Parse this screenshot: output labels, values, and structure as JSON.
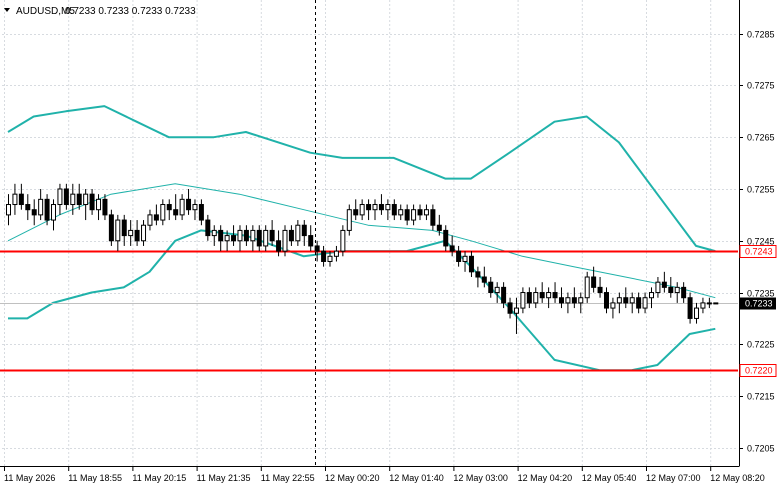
{
  "header": {
    "symbol": "AUDUSD,M5",
    "ohlc": "0.7233 0.7233 0.7233 0.7233"
  },
  "chart_data": {
    "type": "candlestick",
    "symbol": "AUDUSD",
    "timeframe": "M5",
    "y_ticks": [
      "0.7285",
      "0.7275",
      "0.7265",
      "0.7255",
      "0.7245",
      "0.7235",
      "0.7225",
      "0.7215",
      "0.7205"
    ],
    "ylim": [
      0.72015,
      0.72915
    ],
    "x_ticks": [
      "11 May 2026",
      "11 May 18:55",
      "11 May 20:15",
      "11 May 21:35",
      "11 May 22:55",
      "12 May 00:20",
      "12 May 01:40",
      "12 May 03:00",
      "12 May 04:20",
      "12 May 05:40",
      "12 May 07:00",
      "12 May 08:20"
    ],
    "bar_count": 111,
    "candles": [
      [
        0.725,
        0.7254,
        0.7248,
        0.7252
      ],
      [
        0.7252,
        0.7256,
        0.725,
        0.7254
      ],
      [
        0.7254,
        0.7256,
        0.7251,
        0.7252
      ],
      [
        0.7252,
        0.7254,
        0.7249,
        0.7251
      ],
      [
        0.7251,
        0.7253,
        0.7248,
        0.725
      ],
      [
        0.725,
        0.7255,
        0.7249,
        0.7253
      ],
      [
        0.7253,
        0.7254,
        0.7248,
        0.7249
      ],
      [
        0.7249,
        0.7253,
        0.7247,
        0.7252
      ],
      [
        0.7252,
        0.7256,
        0.725,
        0.7255
      ],
      [
        0.7255,
        0.7256,
        0.7251,
        0.7252
      ],
      [
        0.7252,
        0.7256,
        0.725,
        0.7254
      ],
      [
        0.7254,
        0.7256,
        0.7251,
        0.7252
      ],
      [
        0.7252,
        0.7255,
        0.7249,
        0.7254
      ],
      [
        0.7254,
        0.7255,
        0.725,
        0.7251
      ],
      [
        0.7251,
        0.7254,
        0.7249,
        0.7253
      ],
      [
        0.7253,
        0.7254,
        0.7249,
        0.725
      ],
      [
        0.725,
        0.7251,
        0.7244,
        0.7245
      ],
      [
        0.7245,
        0.725,
        0.7243,
        0.7249
      ],
      [
        0.7249,
        0.725,
        0.7244,
        0.7246
      ],
      [
        0.7246,
        0.7249,
        0.7244,
        0.7247
      ],
      [
        0.7247,
        0.7249,
        0.7244,
        0.7245
      ],
      [
        0.7245,
        0.7249,
        0.7244,
        0.7248
      ],
      [
        0.7248,
        0.7251,
        0.7247,
        0.725
      ],
      [
        0.725,
        0.7252,
        0.7248,
        0.7249
      ],
      [
        0.7249,
        0.7253,
        0.7248,
        0.7252
      ],
      [
        0.7252,
        0.7253,
        0.7249,
        0.7251
      ],
      [
        0.7251,
        0.7254,
        0.7249,
        0.725
      ],
      [
        0.725,
        0.7254,
        0.7249,
        0.7253
      ],
      [
        0.7253,
        0.7255,
        0.725,
        0.7251
      ],
      [
        0.7251,
        0.7253,
        0.7249,
        0.7252
      ],
      [
        0.7252,
        0.7253,
        0.7248,
        0.7249
      ],
      [
        0.7249,
        0.725,
        0.7245,
        0.7246
      ],
      [
        0.7246,
        0.7248,
        0.7244,
        0.7247
      ],
      [
        0.7247,
        0.7248,
        0.7243,
        0.7245
      ],
      [
        0.7245,
        0.7247,
        0.7243,
        0.7246
      ],
      [
        0.7246,
        0.7248,
        0.7244,
        0.7245
      ],
      [
        0.7245,
        0.7248,
        0.7243,
        0.7247
      ],
      [
        0.7247,
        0.7248,
        0.7244,
        0.7245
      ],
      [
        0.7245,
        0.7248,
        0.7243,
        0.7247
      ],
      [
        0.7247,
        0.7248,
        0.7243,
        0.7244
      ],
      [
        0.7244,
        0.7248,
        0.7243,
        0.7247
      ],
      [
        0.7247,
        0.7249,
        0.7244,
        0.7245
      ],
      [
        0.7245,
        0.7247,
        0.7242,
        0.7243
      ],
      [
        0.7243,
        0.7248,
        0.7242,
        0.7247
      ],
      [
        0.7247,
        0.7248,
        0.7244,
        0.7245
      ],
      [
        0.7245,
        0.7249,
        0.7244,
        0.7248
      ],
      [
        0.7248,
        0.7249,
        0.7244,
        0.7246
      ],
      [
        0.7246,
        0.7248,
        0.7243,
        0.7244
      ],
      [
        0.7244,
        0.7245,
        0.7241,
        0.7243
      ],
      [
        0.7243,
        0.7244,
        0.724,
        0.7241
      ],
      [
        0.7241,
        0.7243,
        0.724,
        0.7242
      ],
      [
        0.7242,
        0.7244,
        0.7241,
        0.7243
      ],
      [
        0.7243,
        0.7248,
        0.7242,
        0.7247
      ],
      [
        0.7247,
        0.7252,
        0.7246,
        0.7251
      ],
      [
        0.7251,
        0.7253,
        0.7249,
        0.725
      ],
      [
        0.725,
        0.7253,
        0.7249,
        0.7252
      ],
      [
        0.7252,
        0.7253,
        0.7249,
        0.7251
      ],
      [
        0.7251,
        0.7253,
        0.7249,
        0.7252
      ],
      [
        0.7252,
        0.7254,
        0.725,
        0.7251
      ],
      [
        0.7251,
        0.7253,
        0.7249,
        0.7252
      ],
      [
        0.7252,
        0.7253,
        0.7249,
        0.725
      ],
      [
        0.725,
        0.7252,
        0.7249,
        0.7251
      ],
      [
        0.7251,
        0.7252,
        0.7248,
        0.7249
      ],
      [
        0.7249,
        0.7252,
        0.7248,
        0.7251
      ],
      [
        0.7251,
        0.7252,
        0.7249,
        0.725
      ],
      [
        0.725,
        0.7252,
        0.7249,
        0.7251
      ],
      [
        0.7251,
        0.7252,
        0.7247,
        0.7248
      ],
      [
        0.7248,
        0.725,
        0.7246,
        0.7247
      ],
      [
        0.7247,
        0.7248,
        0.7243,
        0.7244
      ],
      [
        0.7244,
        0.7246,
        0.7242,
        0.7243
      ],
      [
        0.7243,
        0.7244,
        0.724,
        0.7241
      ],
      [
        0.7241,
        0.7243,
        0.7239,
        0.7242
      ],
      [
        0.7242,
        0.7243,
        0.7238,
        0.7239
      ],
      [
        0.7239,
        0.724,
        0.7236,
        0.7238
      ],
      [
        0.7238,
        0.724,
        0.7236,
        0.7237
      ],
      [
        0.7237,
        0.7238,
        0.7234,
        0.7235
      ],
      [
        0.7235,
        0.7237,
        0.7233,
        0.7236
      ],
      [
        0.7236,
        0.7237,
        0.7232,
        0.7233
      ],
      [
        0.7233,
        0.7234,
        0.723,
        0.7231
      ],
      [
        0.7231,
        0.7234,
        0.7227,
        0.7232
      ],
      [
        0.7232,
        0.7236,
        0.7231,
        0.7235
      ],
      [
        0.7235,
        0.7236,
        0.7232,
        0.7233
      ],
      [
        0.7233,
        0.7236,
        0.7232,
        0.7235
      ],
      [
        0.7235,
        0.7237,
        0.7233,
        0.7234
      ],
      [
        0.7234,
        0.7236,
        0.7232,
        0.7235
      ],
      [
        0.7235,
        0.7237,
        0.7233,
        0.7234
      ],
      [
        0.7234,
        0.7236,
        0.7232,
        0.7233
      ],
      [
        0.7233,
        0.7235,
        0.7231,
        0.7234
      ],
      [
        0.7234,
        0.7236,
        0.7232,
        0.7233
      ],
      [
        0.7233,
        0.7235,
        0.7231,
        0.7234
      ],
      [
        0.7234,
        0.7239,
        0.7233,
        0.7238
      ],
      [
        0.7238,
        0.724,
        0.7235,
        0.7236
      ],
      [
        0.7236,
        0.7238,
        0.7234,
        0.7235
      ],
      [
        0.7235,
        0.7236,
        0.7231,
        0.7232
      ],
      [
        0.7232,
        0.7234,
        0.723,
        0.7233
      ],
      [
        0.7233,
        0.7235,
        0.7231,
        0.7234
      ],
      [
        0.7234,
        0.7236,
        0.7232,
        0.7233
      ],
      [
        0.7233,
        0.7235,
        0.7231,
        0.7234
      ],
      [
        0.7234,
        0.7235,
        0.7231,
        0.7232
      ],
      [
        0.7232,
        0.7235,
        0.7231,
        0.7234
      ],
      [
        0.7234,
        0.7236,
        0.7232,
        0.7235
      ],
      [
        0.7235,
        0.7238,
        0.7234,
        0.7237
      ],
      [
        0.7237,
        0.7239,
        0.7235,
        0.7236
      ],
      [
        0.7236,
        0.7238,
        0.7234,
        0.7235
      ],
      [
        0.7235,
        0.7237,
        0.7233,
        0.7236
      ],
      [
        0.7236,
        0.7237,
        0.7233,
        0.7234
      ],
      [
        0.7234,
        0.7235,
        0.7229,
        0.723
      ],
      [
        0.723,
        0.7233,
        0.7229,
        0.7232
      ],
      [
        0.7232,
        0.7234,
        0.7231,
        0.7233
      ],
      [
        0.7233,
        0.7234,
        0.7232,
        0.7233
      ],
      [
        0.7233,
        0.7233,
        0.7233,
        0.7233
      ]
    ],
    "bollinger_upper": [
      [
        0,
        0.7266
      ],
      [
        4,
        0.7269
      ],
      [
        9,
        0.727
      ],
      [
        15,
        0.7271
      ],
      [
        20,
        0.7268
      ],
      [
        25,
        0.7265
      ],
      [
        32,
        0.7265
      ],
      [
        37,
        0.7266
      ],
      [
        47,
        0.7262
      ],
      [
        52,
        0.7261
      ],
      [
        60,
        0.7261
      ],
      [
        68,
        0.7257
      ],
      [
        72,
        0.7257
      ],
      [
        78,
        0.7262
      ],
      [
        85,
        0.7268
      ],
      [
        90,
        0.7269
      ],
      [
        95,
        0.7264
      ],
      [
        101,
        0.7254
      ],
      [
        107,
        0.7244
      ],
      [
        110,
        0.7243
      ]
    ],
    "bollinger_middle": [
      [
        0,
        0.7245
      ],
      [
        8,
        0.725
      ],
      [
        16,
        0.7254
      ],
      [
        26,
        0.7256
      ],
      [
        36,
        0.7254
      ],
      [
        46,
        0.7251
      ],
      [
        56,
        0.7248
      ],
      [
        66,
        0.7247
      ],
      [
        72,
        0.7245
      ],
      [
        80,
        0.7242
      ],
      [
        88,
        0.724
      ],
      [
        96,
        0.7238
      ],
      [
        104,
        0.7236
      ],
      [
        110,
        0.7234
      ]
    ],
    "bollinger_lower": [
      [
        0,
        0.723
      ],
      [
        3,
        0.723
      ],
      [
        7,
        0.7233
      ],
      [
        13,
        0.7235
      ],
      [
        18,
        0.7236
      ],
      [
        22,
        0.7239
      ],
      [
        26,
        0.7245
      ],
      [
        30,
        0.7247
      ],
      [
        37,
        0.7246
      ],
      [
        46,
        0.7242
      ],
      [
        52,
        0.7243
      ],
      [
        62,
        0.7243
      ],
      [
        68,
        0.7245
      ],
      [
        72,
        0.724
      ],
      [
        78,
        0.7232
      ],
      [
        85,
        0.7222
      ],
      [
        92,
        0.722
      ],
      [
        97,
        0.722
      ],
      [
        101,
        0.7221
      ],
      [
        106,
        0.7227
      ],
      [
        110,
        0.7228
      ]
    ],
    "horizontal_lines": [
      {
        "price": 0.7243,
        "label": "0.7243",
        "color": "#ff0000"
      },
      {
        "price": 0.722,
        "label": "0.7220",
        "color": "#ff0000"
      }
    ],
    "current_price": {
      "price": 0.7233,
      "label": "0.7233"
    },
    "vertical_marker_bar": 48,
    "grid": true
  },
  "colors": {
    "background": "#ffffff",
    "grid": "#d7dbe0",
    "candle": "#000000",
    "bollinger": "#20b2aa",
    "level_line": "#ff0000",
    "bid_line": "#c0c0c0",
    "bid_tag_bg": "#000000",
    "bid_tag_text": "#ffffff"
  }
}
